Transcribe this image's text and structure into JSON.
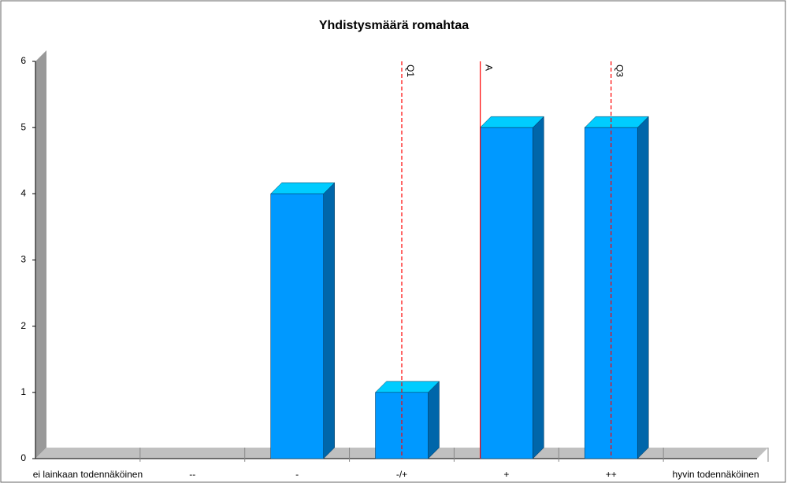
{
  "chart_data": {
    "type": "bar3d",
    "title": "Yhdistysmäärä romahtaa",
    "categories": [
      "ei lainkaan todennäköinen",
      "--",
      "-",
      "-/+",
      "+",
      "++",
      "hyvin todennäköinen"
    ],
    "values": [
      0,
      0,
      4,
      1,
      5,
      5,
      0
    ],
    "color": "#0099ff",
    "ylim": [
      0,
      6
    ],
    "yticks": [
      0,
      1,
      2,
      3,
      4,
      5,
      6
    ],
    "markers": [
      {
        "label": "Q1",
        "value": 4,
        "color": "#ff0000",
        "style": "dashed"
      },
      {
        "label": "A",
        "value": 4.75,
        "color": "#ff0000",
        "style": "solid"
      },
      {
        "label": "Q3",
        "value": 6,
        "color": "#ff0000",
        "style": "dashed"
      }
    ]
  }
}
